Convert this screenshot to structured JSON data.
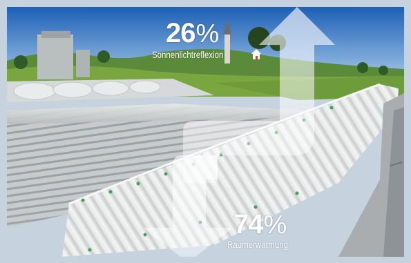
{
  "reflection": {
    "percent_number": "26",
    "percent_sign": "%",
    "caption": "Sonnenlichtreflexion"
  },
  "warming": {
    "percent_number": "74",
    "percent_sign": "%",
    "caption": "Raumerwärmung"
  },
  "colors": {
    "frame_border": "#c6d3df",
    "sky_top": "#1d5fb5",
    "sky_bottom": "#9fc4e8",
    "roof": "#bfc3c4",
    "arrow_fill": "#ffffff"
  },
  "icons": [
    "house-icon",
    "up-arrow",
    "down-arrow"
  ]
}
